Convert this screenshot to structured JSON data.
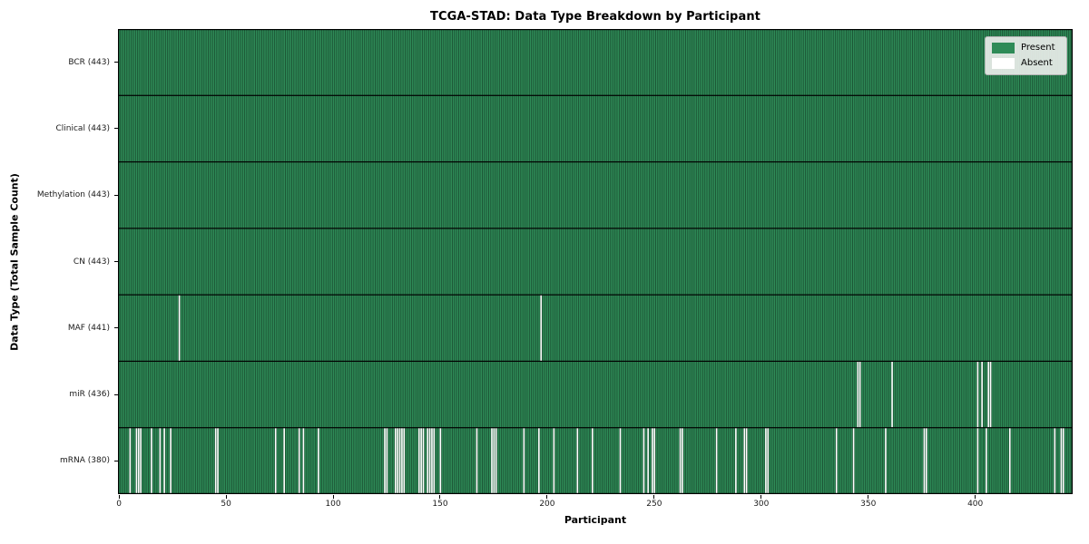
{
  "chart_data": {
    "type": "heatmap",
    "title": "TCGA-STAD: Data Type Breakdown by Participant",
    "xlabel": "Participant",
    "ylabel": "Data Type (Total Sample Count)",
    "x_ticks": [
      0,
      50,
      100,
      150,
      200,
      250,
      300,
      350,
      400
    ],
    "n_participants": 443,
    "xlim": [
      -0.5,
      445.5
    ],
    "grid": "row separators only",
    "legend": {
      "position": "upper right",
      "entries": [
        {
          "label": "Present",
          "color": "#2e8b57"
        },
        {
          "label": "Absent",
          "color": "#ffffff"
        }
      ]
    },
    "colors": {
      "present": "#2e8b57",
      "absent": "#ffffff",
      "cell_edge": "rgba(0,0,0,0.5)",
      "grid_line": "#000000"
    },
    "rows": [
      {
        "name": "BCR",
        "label": "BCR (443)",
        "total": 443,
        "absent": []
      },
      {
        "name": "Clinical",
        "label": "Clinical (443)",
        "total": 443,
        "absent": []
      },
      {
        "name": "Methylation",
        "label": "Methylation (443)",
        "total": 443,
        "absent": []
      },
      {
        "name": "CN",
        "label": "CN (443)",
        "total": 443,
        "absent": []
      },
      {
        "name": "MAF",
        "label": "MAF (441)",
        "total": 441,
        "absent": [
          28,
          197
        ]
      },
      {
        "name": "miR",
        "label": "miR (436)",
        "total": 436,
        "absent": [
          345,
          346,
          361,
          401,
          403,
          406,
          407
        ]
      },
      {
        "name": "mRNA",
        "label": "mRNA (380)",
        "total": 380,
        "absent": [
          5,
          8,
          9,
          10,
          15,
          19,
          21,
          24,
          45,
          46,
          73,
          77,
          84,
          86,
          93,
          124,
          125,
          129,
          130,
          131,
          132,
          133,
          140,
          141,
          142,
          144,
          145,
          146,
          147,
          150,
          167,
          174,
          175,
          176,
          189,
          196,
          203,
          214,
          221,
          234,
          245,
          247,
          249,
          250,
          262,
          263,
          279,
          288,
          292,
          293,
          302,
          303,
          335,
          343,
          358,
          376,
          377,
          401,
          405,
          416,
          437,
          440,
          441
        ]
      }
    ]
  }
}
